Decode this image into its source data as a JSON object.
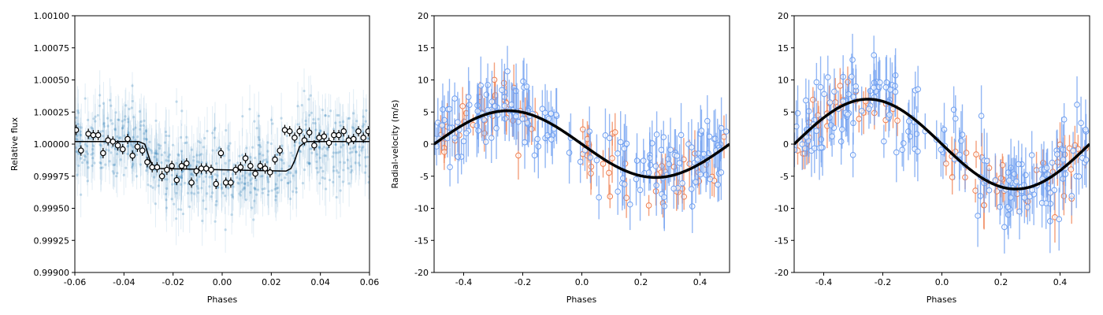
{
  "chart_data": [
    {
      "type": "scatter",
      "xlabel": "Phases",
      "ylabel": "Relative flux",
      "xlim": [
        -0.06,
        0.06
      ],
      "ylim": [
        0.999,
        1.001
      ],
      "xticks": [
        "-0.06",
        "-0.04",
        "-0.02",
        "0.00",
        "0.02",
        "0.04",
        "0.06"
      ],
      "yticks": [
        "0.99900",
        "0.99925",
        "0.99950",
        "0.99975",
        "1.00000",
        "1.00025",
        "1.00050",
        "1.00075",
        "1.00100"
      ],
      "raw_points": {
        "color": "#1f77b4",
        "x_range": [
          -0.06,
          0.06
        ],
        "scatter_sd": 0.00015,
        "count": 700
      },
      "binned": {
        "x": [
          -0.0595,
          -0.0575,
          -0.0545,
          -0.0525,
          -0.0505,
          -0.0485,
          -0.0465,
          -0.0445,
          -0.0425,
          -0.0405,
          -0.0385,
          -0.0365,
          -0.0345,
          -0.0325,
          -0.0305,
          -0.0285,
          -0.0265,
          -0.0245,
          -0.0225,
          -0.0205,
          -0.0185,
          -0.0165,
          -0.0145,
          -0.0125,
          -0.0105,
          -0.0085,
          -0.0065,
          -0.0045,
          -0.0025,
          -0.0005,
          0.0015,
          0.0035,
          0.0055,
          0.0075,
          0.0095,
          0.0115,
          0.0135,
          0.0155,
          0.0175,
          0.0195,
          0.0215,
          0.0235,
          0.0255,
          0.0275,
          0.0295,
          0.0315,
          0.0335,
          0.0355,
          0.0375,
          0.0395,
          0.0415,
          0.0435,
          0.0455,
          0.0475,
          0.0495,
          0.0515,
          0.0535,
          0.0555,
          0.0575,
          0.0595
        ],
        "y": [
          1.00011,
          0.99995,
          1.00008,
          1.00007,
          1.00007,
          0.99993,
          1.00003,
          1.00002,
          0.99999,
          0.99996,
          1.00004,
          0.99991,
          0.99998,
          0.99995,
          0.99986,
          0.99982,
          0.99982,
          0.99975,
          0.9998,
          0.99983,
          0.99972,
          0.99983,
          0.99985,
          0.9997,
          0.99979,
          0.99981,
          0.99981,
          0.9998,
          0.99969,
          0.99993,
          0.9997,
          0.9997,
          0.9998,
          0.99982,
          0.99989,
          0.99983,
          0.99977,
          0.99983,
          0.99981,
          0.99978,
          0.99988,
          0.99995,
          1.00011,
          1.0001,
          1.00005,
          1.0001,
          1.00003,
          1.00009,
          0.99999,
          1.00005,
          1.00006,
          1.00001,
          1.00007,
          1.00007,
          1.0001,
          1.00003,
          1.00004,
          1.0001,
          1.00005,
          1.0001
        ],
        "yerr": 4e-05
      },
      "model": {
        "x": [
          -0.06,
          -0.034,
          -0.0315,
          -0.0295,
          -0.028,
          -0.026,
          0.026,
          0.028,
          0.0295,
          0.0315,
          0.034,
          0.06
        ],
        "y": [
          1.00002,
          1.00002,
          1.0,
          0.99988,
          0.99982,
          0.99981,
          0.99979,
          0.99981,
          0.99987,
          0.99998,
          1.00002,
          1.00002
        ],
        "color": "#000000"
      }
    },
    {
      "type": "scatter",
      "xlabel": "Phases",
      "ylabel": "Radial-velocity (m/s)",
      "xlim": [
        -0.5,
        0.5
      ],
      "ylim": [
        -20,
        20
      ],
      "xticks": [
        "-0.4",
        "-0.2",
        "0.0",
        "0.2",
        "0.4"
      ],
      "yticks": [
        "-20",
        "-15",
        "-10",
        "-5",
        "0",
        "5",
        "10",
        "15",
        "20"
      ],
      "model": {
        "type": "sine",
        "amplitude": 5.2,
        "phase_of_max": -0.25,
        "color": "#000000"
      },
      "series": [
        {
          "color": "#6f9ff0",
          "marker": "open-circle",
          "count": 170,
          "scatter_sd": 3.0,
          "yerr": [
            2.5,
            5.0
          ]
        },
        {
          "color": "#ef7f50",
          "marker": "open-circle",
          "count": 70,
          "scatter_sd": 2.5,
          "yerr": [
            1.5,
            4.0
          ]
        }
      ]
    },
    {
      "type": "scatter",
      "xlabel": "Phases",
      "ylabel": "",
      "xlim": [
        -0.5,
        0.5
      ],
      "ylim": [
        -20,
        20
      ],
      "xticks": [
        "-0.4",
        "-0.2",
        "0.0",
        "0.2",
        "0.4"
      ],
      "yticks": [
        "-20",
        "-15",
        "-10",
        "-5",
        "0",
        "5",
        "10",
        "15",
        "20"
      ],
      "model": {
        "type": "sine",
        "amplitude": 7.0,
        "phase_of_max": -0.25,
        "color": "#000000"
      },
      "series": [
        {
          "color": "#6f9ff0",
          "marker": "open-circle",
          "count": 180,
          "scatter_sd": 3.0,
          "yerr": [
            2.5,
            5.0
          ]
        },
        {
          "color": "#ef7f50",
          "marker": "open-circle",
          "count": 70,
          "scatter_sd": 2.5,
          "yerr": [
            1.5,
            4.0
          ]
        }
      ]
    }
  ]
}
